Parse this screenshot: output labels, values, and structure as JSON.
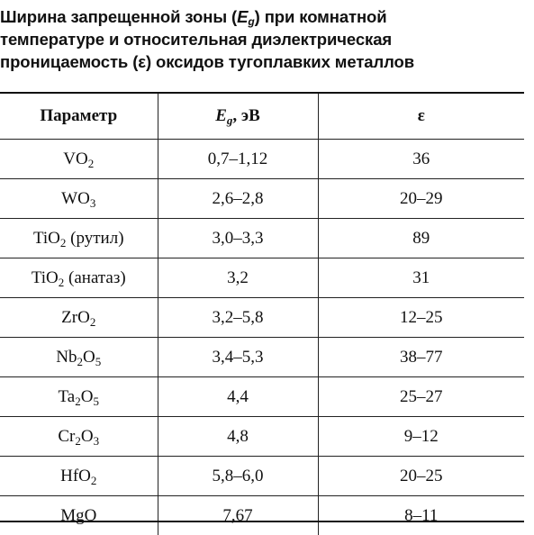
{
  "caption": {
    "line1_pre": "Ширина запрещенной зоны (",
    "line1_sym": "E",
    "line1_sub": "g",
    "line1_post": ") при комнатной",
    "line2": "температуре и относительная диэлектрическая",
    "line3": "проницаемость (ε) оксидов тугоплавких металлов"
  },
  "table": {
    "headers": {
      "param": "Параметр",
      "eg_sym": "E",
      "eg_sub": "g",
      "eg_unit": ", эВ",
      "eps": "ε"
    },
    "rows": [
      {
        "f": [
          "VO",
          "2",
          ""
        ],
        "note": "",
        "eg": "0,7–1,12",
        "eps": "36"
      },
      {
        "f": [
          "WO",
          "3",
          ""
        ],
        "note": "",
        "eg": "2,6–2,8",
        "eps": "20–29"
      },
      {
        "f": [
          "TiO",
          "2",
          ""
        ],
        "note": " (рутил)",
        "eg": "3,0–3,3",
        "eps": "89"
      },
      {
        "f": [
          "TiO",
          "2",
          ""
        ],
        "note": " (анатаз)",
        "eg": "3,2",
        "eps": "31"
      },
      {
        "f": [
          "ZrO",
          "2",
          ""
        ],
        "note": "",
        "eg": "3,2–5,8",
        "eps": "12–25"
      },
      {
        "f": [
          "Nb",
          "2",
          "O",
          "5"
        ],
        "note": "",
        "eg": "3,4–5,3",
        "eps": "38–77"
      },
      {
        "f": [
          "Ta",
          "2",
          "O",
          "5"
        ],
        "note": "",
        "eg": "4,4",
        "eps": "25–27"
      },
      {
        "f": [
          "Cr",
          "2",
          "O",
          "3"
        ],
        "note": "",
        "eg": "4,8",
        "eps": "9–12"
      },
      {
        "f": [
          "HfO",
          "2",
          ""
        ],
        "note": "",
        "eg": "5,8–6,0",
        "eps": "20–25"
      },
      {
        "f": [
          "MgO"
        ],
        "note": "",
        "eg": "7,67",
        "eps": "8–11"
      }
    ]
  }
}
